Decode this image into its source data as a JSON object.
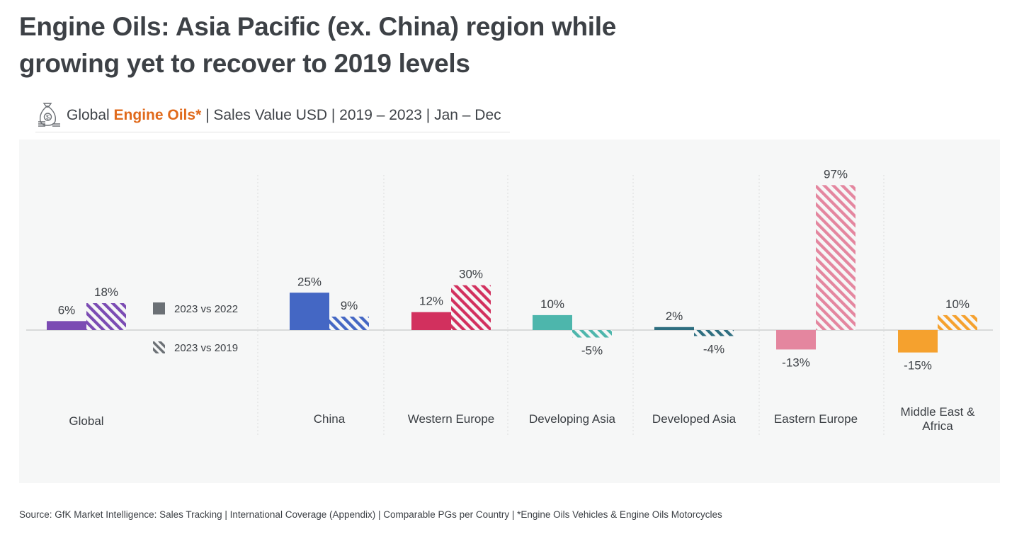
{
  "title": "Engine Oils: Asia Pacific (ex. China) region while growing yet to recover to 2019 levels",
  "subtitle": {
    "prefix": "Global ",
    "accent": "Engine Oils*",
    "suffix": " | Sales Value USD | 2019 – 2023 | Jan – Dec",
    "icon": "money-bag-coins-icon",
    "accent_color": "#e06a1b"
  },
  "footer": "Source: GfK Market Intelligence: Sales Tracking | International Coverage (Appendix) | Comparable PGs per Country | *Engine Oils Vehicles & Engine Oils Motorcycles",
  "chart_data": {
    "type": "bar",
    "categories": [
      "Global",
      "China",
      "Western Europe",
      "Developing Asia",
      "Developed Asia",
      "Eastern Europe",
      "Middle East & Africa"
    ],
    "category_colors": [
      "#7b4bb3",
      "#4467c4",
      "#d2305e",
      "#4db6ac",
      "#2e6e80",
      "#e4869f",
      "#f5a12e"
    ],
    "series": [
      {
        "name": "2023 vs 2022",
        "style": "solid",
        "values": [
          6,
          25,
          12,
          10,
          2,
          -13,
          -15
        ],
        "labels": [
          "6%",
          "25%",
          "12%",
          "10%",
          "2%",
          "-13%",
          "-15%"
        ]
      },
      {
        "name": "2023 vs 2019",
        "style": "hatched",
        "values": [
          18,
          9,
          30,
          -5,
          -4,
          97,
          10
        ],
        "labels": [
          "18%",
          "9%",
          "30%",
          "-5%",
          "-4%",
          "97%",
          "10%"
        ]
      }
    ],
    "legend": {
      "placement": "right-of-first-group",
      "solid_label": "2023 vs 2022",
      "hatched_label": "2023 vs 2019",
      "color": "#6b7075"
    },
    "unit": "%"
  }
}
